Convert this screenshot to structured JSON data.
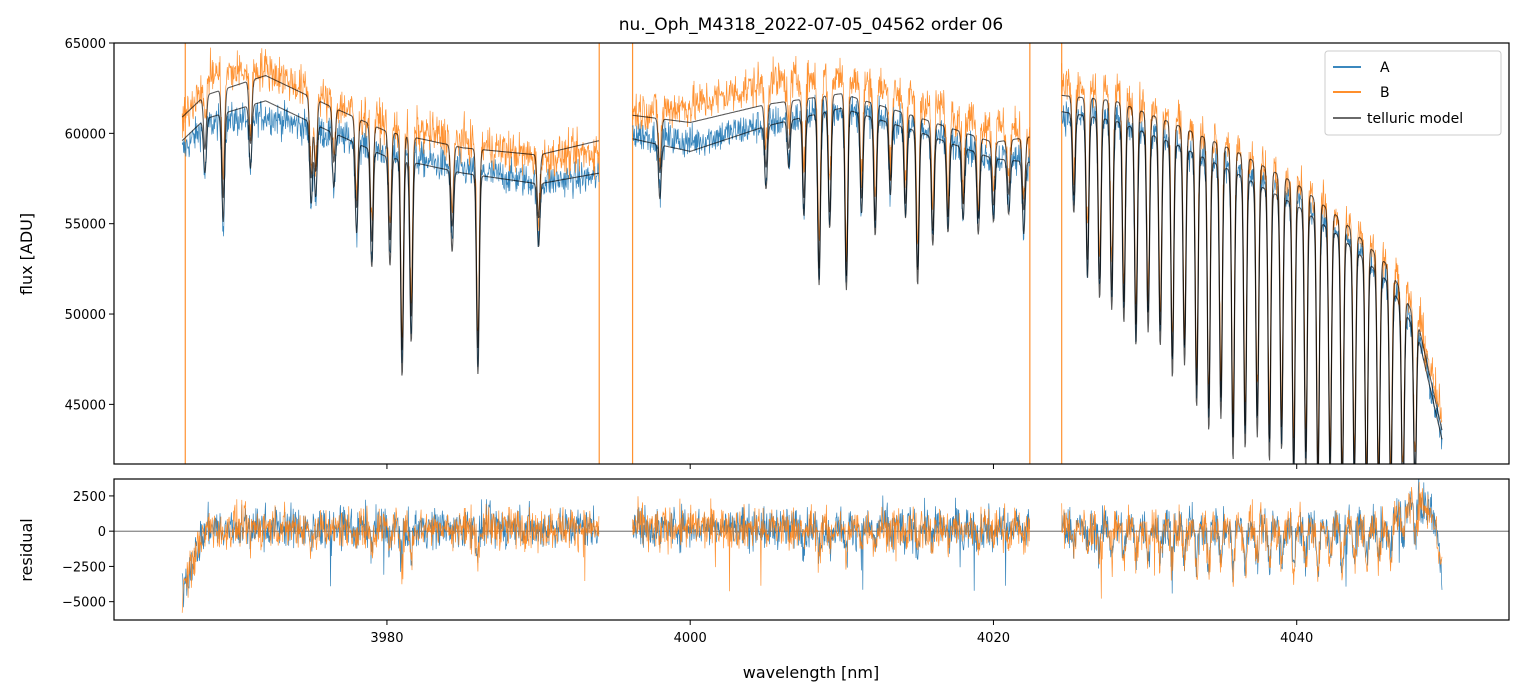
{
  "chart_data": [
    {
      "type": "line",
      "title": "nu._Oph_M4318_2022-07-05_04562  order 06",
      "xlabel": "",
      "ylabel": "flux [ADU]",
      "xlim": [
        3962,
        4054
      ],
      "ylim": [
        41700,
        65000
      ],
      "y_ticks": [
        45000,
        50000,
        55000,
        60000,
        65000
      ],
      "y_tick_labels": [
        "45000",
        "50000",
        "55000",
        "60000",
        "65000"
      ],
      "x_ticks": [
        3980,
        4000,
        4020,
        4040
      ],
      "grid": false,
      "legend": {
        "placement": "top-right",
        "entries": [
          "A",
          "B",
          "telluric model"
        ]
      },
      "segments": [
        [
          3966.5,
          3994.0
        ],
        [
          3996.2,
          4022.4
        ],
        [
          4024.5,
          4049.6
        ]
      ],
      "series": [
        {
          "name": "A",
          "color": "#1f77b4",
          "continuum": {
            "x": [
              3966.5,
              3968,
              3972,
              3976,
              3980,
              3985,
              3990,
              3994,
              3996.2,
              4000,
              4005,
              4010,
              4015,
              4020,
              4022.4,
              4024.5,
              4028,
              4032,
              4036,
              4040,
              4043,
              4046,
              4048,
              4049.6
            ],
            "y": [
              59000,
              60500,
              61000,
              60000,
              59000,
              58000,
              57300,
              57600,
              60000,
              59500,
              60500,
              61300,
              60300,
              58700,
              58500,
              61000,
              60700,
              59500,
              58000,
              56300,
              54500,
              52000,
              49000,
              43000
            ]
          }
        },
        {
          "name": "B",
          "color": "#ff7f0e",
          "continuum": {
            "x": [
              3966.5,
              3968,
              3972,
              3976,
              3980,
              3985,
              3990,
              3994,
              3996.2,
              4000,
              4005,
              4010,
              4015,
              4020,
              4022.4,
              4024.5,
              4028,
              4032,
              4036,
              4040,
              4043,
              4046,
              4048,
              4049.6
            ],
            "y": [
              60500,
              63200,
              63600,
              61800,
              60500,
              59600,
              58600,
              59000,
              61200,
              61500,
              62800,
              63200,
              61900,
              60400,
              60000,
              62700,
              62200,
              60700,
              59100,
              57300,
              55300,
              53000,
              50000,
              44000
            ]
          }
        },
        {
          "name": "telluric model",
          "color": "#555555",
          "continuum_A": {
            "x": [
              3966.5,
              3968,
              3972,
              3976,
              3980,
              3985,
              3990,
              3994,
              3996.2,
              4000,
              4005,
              4010,
              4015,
              4020,
              4022.4,
              4024.5,
              4028,
              4032,
              4036,
              4040,
              4043,
              4046,
              4048,
              4049.6
            ],
            "y": [
              59600,
              60800,
              61800,
              60200,
              58700,
              57800,
              57200,
              57800,
              59700,
              59000,
              60400,
              61400,
              60100,
              58600,
              58400,
              61200,
              60700,
              59400,
              57800,
              56000,
              54200,
              51800,
              48800,
              43000
            ]
          },
          "continuum_B": {
            "x": [
              3966.5,
              3968,
              3972,
              3976,
              3980,
              3985,
              3990,
              3994,
              3996.2,
              4000,
              4005,
              4010,
              4015,
              4020,
              4022.4,
              4024.5,
              4028,
              4032,
              4036,
              4040,
              4043,
              4046,
              4048,
              4049.6
            ],
            "y": [
              60900,
              62100,
              63200,
              61600,
              60100,
              59200,
              58800,
              59600,
              61000,
              60600,
              61600,
              62200,
              60900,
              59500,
              59800,
              62100,
              61800,
              60500,
              59000,
              57200,
              55200,
              52700,
              49500,
              43500
            ]
          }
        }
      ],
      "absorption_lines": {
        "x": [
          3968.0,
          3969.2,
          3971.0,
          3975.0,
          3975.3,
          3976.5,
          3978.0,
          3979.0,
          3980.2,
          3981.0,
          3981.6,
          3984.3,
          3986.0,
          3990.0,
          3998.0,
          4005.0,
          4006.5,
          4007.5,
          4008.5,
          4009.2,
          4010.3,
          4011.3,
          4012.2,
          4013.2,
          4014.2,
          4015.0,
          4016.0,
          4017.0,
          4018.0,
          4019.0,
          4020.0,
          4021.0,
          4022.0,
          4025.3,
          4026.2,
          4027.0,
          4027.8,
          4028.6,
          4029.4,
          4030.2,
          4031.0,
          4031.8,
          4032.6,
          4033.4,
          4034.2,
          4035.0,
          4035.8,
          4036.6,
          4037.4,
          4038.2,
          4039.0,
          4039.8,
          4040.6,
          4041.4,
          4042.2,
          4043.0,
          4043.8,
          4044.6,
          4045.4,
          4046.2,
          4047.0,
          4047.8
        ],
        "depth": [
          3000,
          6000,
          3500,
          4500,
          4000,
          3000,
          5000,
          6500,
          6000,
          12000,
          10000,
          4500,
          11000,
          3500,
          3000,
          3500,
          2600,
          5500,
          9500,
          6500,
          10000,
          5500,
          6500,
          4000,
          5000,
          8500,
          6000,
          5000,
          4000,
          4500,
          3500,
          3000,
          4000,
          5500,
          9000,
          10000,
          10500,
          11000,
          12000,
          11000,
          11500,
          13000,
          12000,
          14000,
          15000,
          14000,
          16000,
          15000,
          14000,
          15000,
          14000,
          15500,
          14500,
          15000,
          14000,
          14500,
          13000,
          13500,
          12500,
          12000,
          11000,
          9000
        ]
      }
    },
    {
      "type": "line",
      "title": "",
      "xlabel": "wavelength [nm]",
      "ylabel": "residual",
      "xlim": [
        3962,
        4054
      ],
      "ylim": [
        -6300,
        3700
      ],
      "y_ticks": [
        -5000,
        -2500,
        0,
        2500
      ],
      "y_tick_labels": [
        "−5000",
        "−2500",
        "0",
        "2500"
      ],
      "x_ticks": [
        3980,
        4000,
        4020,
        4040
      ],
      "x_tick_labels": [
        "3980",
        "4000",
        "4020",
        "4040"
      ],
      "grid": false,
      "zero_line": 0,
      "segments": [
        [
          3966.5,
          3994.0
        ],
        [
          3996.2,
          4022.4
        ],
        [
          4024.5,
          4049.6
        ]
      ],
      "series": [
        {
          "name": "A",
          "color": "#1f77b4",
          "noise_amplitude": 1400
        },
        {
          "name": "B",
          "color": "#ff7f0e",
          "noise_amplitude": 1400
        }
      ]
    }
  ]
}
